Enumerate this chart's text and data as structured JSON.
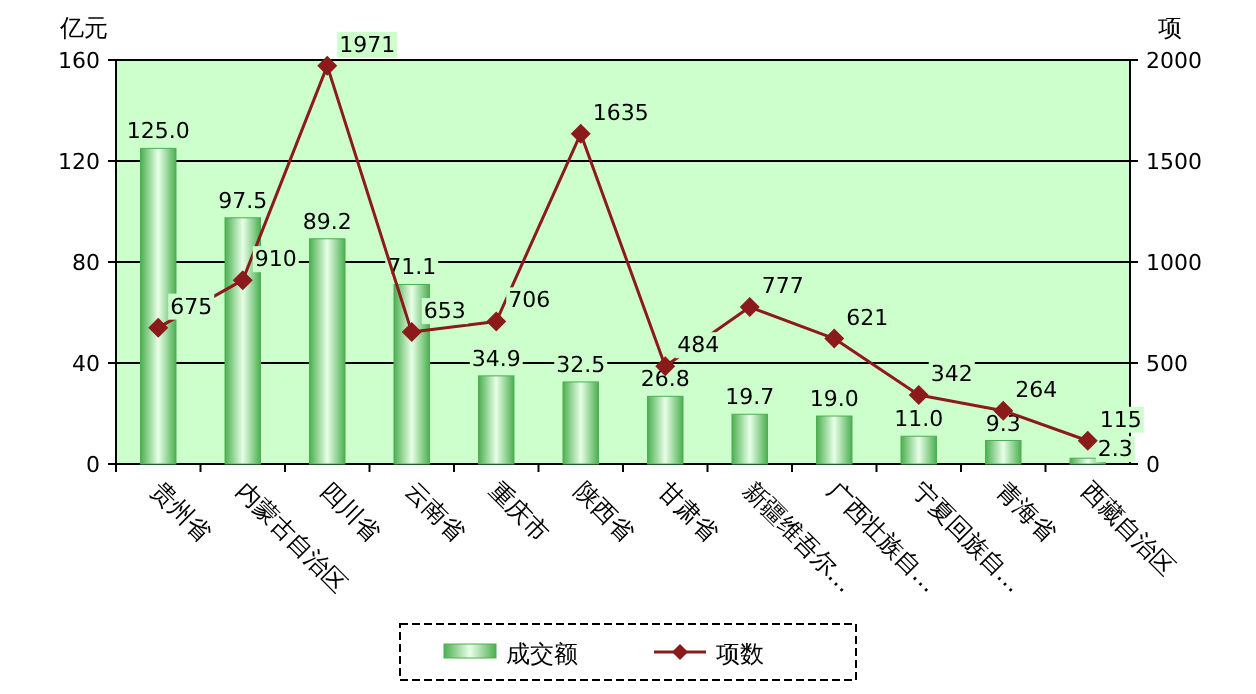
{
  "chart_data": {
    "type": "bar",
    "ylabel": "亿元",
    "y2label": "项",
    "categories": [
      "贵州省",
      "内蒙古自治区",
      "四川省",
      "云南省",
      "重庆市",
      "陕西省",
      "甘肃省",
      "新疆维吾尔…",
      "广西壮族自…",
      "宁夏回族自…",
      "青海省",
      "西藏自治区"
    ],
    "series": [
      {
        "name": "成交额",
        "type": "bar",
        "color": "#4caf50",
        "values": [
          125.0,
          97.5,
          89.2,
          71.1,
          34.9,
          32.5,
          26.8,
          19.7,
          19.0,
          11.0,
          9.3,
          2.3
        ],
        "value_labels": [
          "125.0",
          "97.5",
          "89.2",
          "71.1",
          "34.9",
          "32.5",
          "26.8",
          "19.7",
          "19.0",
          "11.0",
          "9.3",
          "2.3"
        ]
      },
      {
        "name": "项数",
        "type": "line",
        "axis": "y2",
        "color": "#8b1a1a",
        "marker": "diamond",
        "values": [
          675,
          910,
          1971,
          653,
          706,
          1635,
          484,
          777,
          621,
          342,
          264,
          115
        ],
        "value_labels": [
          "675",
          "910",
          "1971",
          "653",
          "706",
          "1635",
          "484",
          "777",
          "621",
          "342",
          "264",
          "115"
        ]
      }
    ],
    "ylim": [
      0,
      160
    ],
    "yticks": [
      0,
      40,
      80,
      120,
      160
    ],
    "y2lim": [
      0,
      2000
    ],
    "y2ticks": [
      0,
      500,
      1000,
      1500,
      2000
    ],
    "grid": "y",
    "legend": "bottom"
  }
}
